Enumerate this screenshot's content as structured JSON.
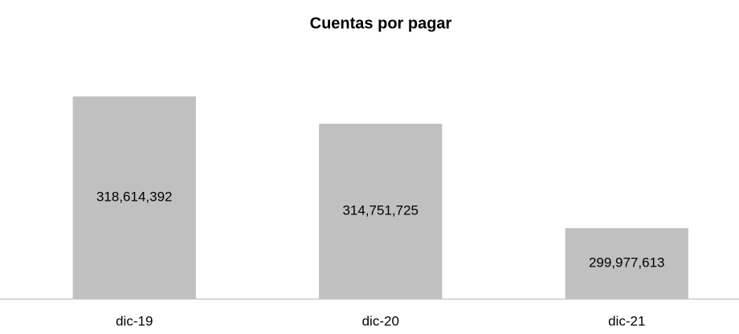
{
  "chart_data": {
    "type": "bar",
    "title": "Cuentas por pagar",
    "categories": [
      "dic-19",
      "dic-20",
      "dic-21"
    ],
    "values": [
      318614392,
      314751725,
      299977613
    ],
    "value_labels": [
      "318,614,392",
      "314,751,725",
      "299,977,613"
    ],
    "color": "#c0c0c0",
    "ylim": [
      290000000,
      320000000
    ]
  }
}
